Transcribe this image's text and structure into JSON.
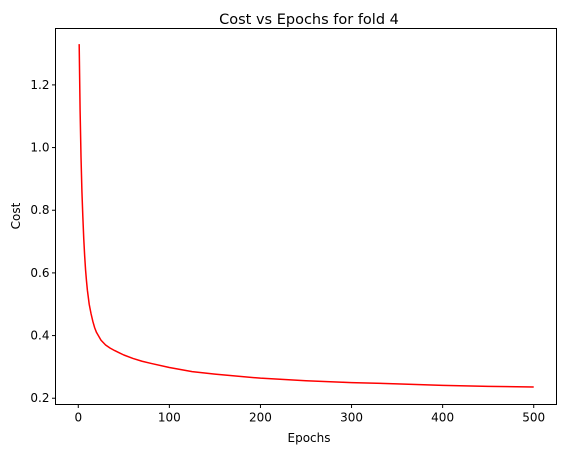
{
  "chart_data": {
    "type": "line",
    "title": "Cost vs Epochs for fold 4",
    "xlabel": "Epochs",
    "ylabel": "Cost",
    "xlim": [
      -25,
      525
    ],
    "ylim": [
      0.18,
      1.38
    ],
    "grid": false,
    "xticks": [
      0,
      100,
      200,
      300,
      400,
      500
    ],
    "xtick_labels": [
      "0",
      "100",
      "200",
      "300",
      "400",
      "500"
    ],
    "yticks": [
      0.2,
      0.4,
      0.6,
      0.8,
      1.0,
      1.2
    ],
    "ytick_labels": [
      "0.2",
      "0.4",
      "0.6",
      "0.8",
      "1.0",
      "1.2"
    ],
    "series": [
      {
        "color": "#ff0000",
        "x": [
          1,
          2,
          3,
          4,
          5,
          6,
          7,
          8,
          9,
          10,
          12,
          14,
          16,
          18,
          20,
          25,
          30,
          35,
          40,
          45,
          50,
          60,
          70,
          80,
          100,
          125,
          150,
          200,
          250,
          300,
          350,
          400,
          450,
          500
        ],
        "y": [
          1.33,
          1.12,
          0.97,
          0.86,
          0.78,
          0.71,
          0.655,
          0.61,
          0.575,
          0.545,
          0.5,
          0.47,
          0.445,
          0.425,
          0.41,
          0.385,
          0.37,
          0.36,
          0.352,
          0.345,
          0.338,
          0.327,
          0.318,
          0.311,
          0.298,
          0.285,
          0.277,
          0.264,
          0.256,
          0.25,
          0.246,
          0.241,
          0.238,
          0.236
        ]
      }
    ]
  }
}
